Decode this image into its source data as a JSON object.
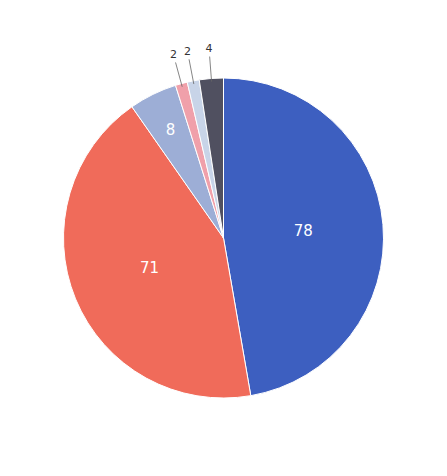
{
  "chart_data": {
    "type": "pie",
    "values": [
      78,
      71,
      8,
      2,
      2,
      4
    ],
    "colors": [
      "#3d5fc0",
      "#f06b5a",
      "#9daed6",
      "#f0a0aa",
      "#c8d4e8",
      "#505060"
    ],
    "data_labels": true
  }
}
